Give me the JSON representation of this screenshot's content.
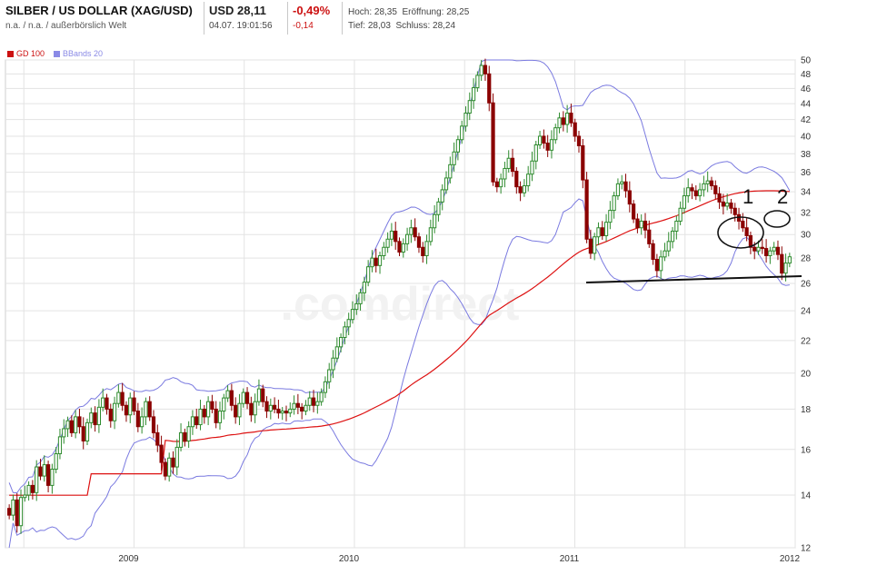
{
  "header": {
    "title": "SILBER / US DOLLAR (XAG/USD)",
    "subtitle": "n.a. / n.a. / außerbörslich Welt",
    "price": "USD 28,11",
    "timestamp": "04.07. 19:01:56",
    "change_pct": "-0,49%",
    "change_abs": "-0,14",
    "high": "Hoch: 28,35",
    "open": "Eröffnung: 28,25",
    "low": "Tief: 28,03",
    "close": "Schluss: 28,24"
  },
  "legend": [
    {
      "label": "GD 100",
      "color": "#cc1111"
    },
    {
      "label": "BBands 20",
      "color": "#8a8ae6"
    }
  ],
  "watermark": ".comdirect",
  "annotations": {
    "label_1": "1",
    "label_2": "2"
  },
  "colors": {
    "up": "#2e8b2e",
    "down": "#8b0000",
    "ma": "#dd1111",
    "bb": "#7a7ae0",
    "grid": "#e3e3e3"
  },
  "chart_data": {
    "type": "candlestick",
    "scale": "log",
    "ylim": [
      12,
      50
    ],
    "y_ticks": [
      12,
      14,
      16,
      18,
      20,
      22,
      24,
      26,
      28,
      30,
      32,
      34,
      36,
      38,
      40,
      42,
      44,
      46,
      48,
      50
    ],
    "x_ticks": [
      "2009",
      "2010",
      "2011",
      "2012"
    ],
    "x_range": [
      "2008-12",
      "2012-07"
    ],
    "grid": true,
    "legend_position": "top-left",
    "close_series": [
      13.2,
      13.8,
      12.8,
      13.9,
      14.0,
      14.4,
      14.1,
      15.2,
      14.8,
      15.3,
      14.4,
      15.1,
      15.8,
      16.6,
      17.0,
      17.4,
      16.8,
      17.6,
      17.1,
      16.4,
      17.3,
      17.8,
      17.2,
      18.1,
      18.6,
      18.0,
      17.4,
      18.3,
      18.9,
      18.2,
      17.7,
      18.6,
      17.9,
      17.1,
      17.6,
      18.4,
      17.6,
      16.8,
      16.2,
      15.4,
      14.8,
      15.6,
      15.2,
      16.1,
      16.8,
      16.4,
      17.1,
      17.6,
      17.2,
      18.0,
      17.6,
      18.4,
      18.0,
      17.3,
      17.9,
      18.6,
      19.0,
      18.2,
      17.6,
      18.3,
      18.9,
      18.3,
      17.7,
      18.4,
      19.1,
      18.4,
      17.9,
      18.2,
      18.0,
      17.8,
      17.9,
      17.8,
      18.0,
      18.3,
      18.1,
      17.9,
      18.2,
      18.6,
      18.2,
      18.4,
      18.9,
      19.5,
      20.2,
      20.9,
      21.6,
      22.2,
      22.9,
      23.4,
      24.1,
      24.5,
      25.3,
      26.1,
      27.3,
      28.0,
      27.4,
      28.2,
      28.9,
      29.6,
      30.3,
      29.4,
      28.5,
      29.2,
      30.0,
      30.6,
      29.8,
      28.9,
      28.2,
      29.4,
      30.6,
      31.8,
      33.0,
      34.2,
      35.4,
      36.8,
      38.2,
      39.6,
      41.2,
      42.8,
      44.4,
      46.1,
      47.8,
      49.2,
      48.0,
      44.1,
      35.0,
      34.5,
      35.3,
      36.4,
      37.5,
      36.1,
      34.5,
      33.9,
      34.6,
      35.8,
      37.2,
      39.0,
      40.0,
      39.2,
      38.4,
      39.6,
      41.0,
      42.2,
      41.4,
      42.8,
      41.6,
      40.0,
      38.9,
      35.2,
      29.6,
      28.4,
      29.8,
      30.6,
      29.9,
      31.1,
      32.2,
      33.6,
      34.8,
      35.0,
      34.1,
      32.8,
      31.4,
      30.6,
      31.2,
      30.4,
      29.2,
      27.9,
      27.0,
      28.1,
      28.6,
      29.4,
      30.3,
      31.2,
      32.4,
      33.6,
      34.4,
      34.1,
      33.6,
      34.2,
      34.8,
      35.1,
      34.6,
      33.8,
      33.0,
      32.6,
      32.9,
      32.4,
      31.8,
      31.2,
      30.6,
      29.9,
      28.9,
      28.6,
      28.9,
      28.8,
      28.2,
      28.6,
      28.9,
      28.3,
      26.8,
      27.6,
      28.11
    ]
  }
}
